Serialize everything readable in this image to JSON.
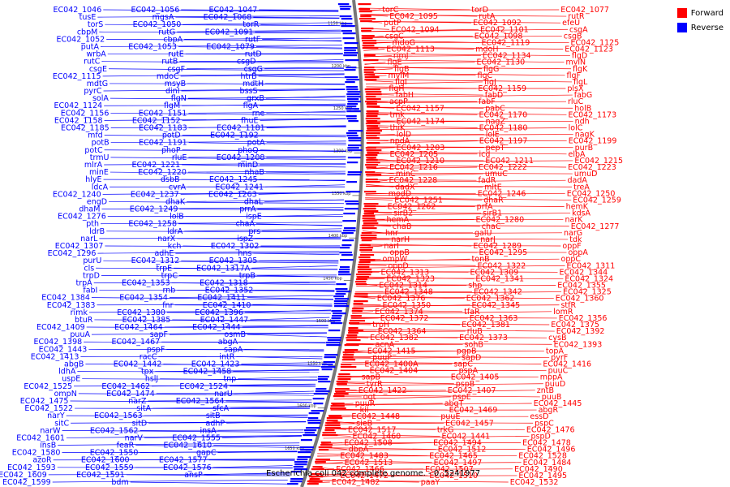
{
  "title": "Escherichia coli 042 complete genome. - 0..5241977",
  "legend": [
    {
      "label": "Forward",
      "color": "#ff0000"
    },
    {
      "label": "Reverse",
      "color": "#0000ff"
    }
  ],
  "scale_labels": [
    "1150 kbp",
    "1200 kbp",
    "1250 kbp",
    "1300 kbp",
    "1350 kbp",
    "1400 kbp",
    "1450 kbp",
    "1500 kbp",
    "1550 kbp",
    "1600 kbp",
    "1650 kbp"
  ],
  "reverse_labels": [
    "EC042_1046",
    "EC042_1056",
    "EC042_1047",
    "tusE",
    "mgsA",
    "EC042_1068",
    "torS",
    "EC042_1050",
    "torR",
    "cbpM",
    "rutG",
    "EC042_1091",
    "EC042_1052",
    "cbpA",
    "rutF",
    "putA",
    "EC042_1053",
    "EC042_1079",
    "wrbA",
    "rutE",
    "rutD",
    "rutC",
    "rutB",
    "csgD",
    "csgE",
    "csgF",
    "csgG",
    "EC042_1115",
    "mdoC",
    "htrB",
    "mdtG",
    "msyB",
    "mdtH",
    "pyrC",
    "dinI",
    "bssS",
    "solA",
    "flgN",
    "grxB",
    "EC042_1124",
    "flgM",
    "flgA",
    "EC042_1156",
    "EC042_1151",
    "rne",
    "EC042_1158",
    "EC042_1152",
    "fhuE",
    "EC042_1185",
    "EC042_1183",
    "EC042_1181",
    "mfd",
    "potD",
    "EC042_1192",
    "potB",
    "EC042_1191",
    "potA",
    "potC",
    "phoP",
    "phoQ",
    "trmU",
    "rluE",
    "EC042_1208",
    "mlrA",
    "EC042_1221",
    "minD",
    "minE",
    "EC042_1220",
    "nhaB",
    "hlyE",
    "dsbB",
    "EC042_1245",
    "ldcA",
    "cvrA",
    "EC042_1241",
    "EC042_1240",
    "EC042_1237",
    "EC042_1263",
    "engD",
    "dhaK",
    "dhaL",
    "dhaM",
    "EC042_1249",
    "prrA",
    "EC042_1276",
    "lolB",
    "ispE",
    "pth",
    "EC042_1258",
    "chaA",
    "ldrB",
    "ldrA",
    "prs",
    "narL",
    "narX",
    "ispZ",
    "EC042_1307",
    "kch",
    "EC042_1302",
    "EC042_1296",
    "adhE",
    "hns",
    "purU",
    "EC042_1312",
    "EC042_1305",
    "cls",
    "trpE",
    "EC042_1317A",
    "trpD",
    "trpC",
    "trpB",
    "trpA",
    "EC042_1353",
    "EC042_1318",
    "fabI",
    "rnb",
    "EC042_1352",
    "EC042_1384",
    "EC042_1354",
    "EC042_1411",
    "EC042_1383",
    "fnr",
    "EC042_1410",
    "rimk",
    "EC042_1380",
    "EC042_1396",
    "btuR",
    "EC042_1385",
    "EC042_1447",
    "EC042_1409",
    "EC042_1464",
    "EC042_1444",
    "puuA",
    "sapF",
    "osmB",
    "EC042_1398",
    "EC042_1467",
    "abgA",
    "EC042_1443",
    "pspF",
    "sapA",
    "EC042_1413",
    "racC",
    "intR",
    "abgB",
    "EC042_1442",
    "EC042_1423",
    "ldhA",
    "tpx",
    "EC042_1458",
    "uspE",
    "hslJ",
    "tnp",
    "EC042_1525",
    "EC042_1462",
    "EC042_1524",
    "ompN",
    "EC042_1474",
    "narU",
    "EC042_1475",
    "narZ",
    "EC042_1564",
    "EC042_1522",
    "sitA",
    "sfcA",
    "narY",
    "EC042_1563",
    "sitB",
    "sitC",
    "sitD",
    "adhP",
    "narW",
    "EC042_1562",
    "insA",
    "EC042_1601",
    "narV",
    "EC042_1555",
    "insB",
    "feaR",
    "EC042_1610",
    "EC042_1580",
    "EC042_1550",
    "gapC",
    "azoR",
    "EC042_1600",
    "EC042_1577",
    "EC042_1593",
    "EC042_1559",
    "EC042_1576",
    "EC042_1609",
    "EC042_1591",
    "ansP",
    "EC042_1599",
    "bdm"
  ],
  "forward_labels": [
    "torC",
    "torD",
    "EC042_1077",
    "EC042_1095",
    "rutA",
    "rutR",
    "putP",
    "EC042_1092",
    "efeU",
    "EC042_1094",
    "EC042_1101",
    "csgA",
    "csgC",
    "EC042_1098",
    "csgB",
    "mdoG",
    "EC042_1119",
    "EC042_1125",
    "EC042_1113",
    "mdoH",
    "EC042_1123",
    "rimJ",
    "EC042_1134",
    "flgD",
    "flgE",
    "EC042_1130",
    "mviN",
    "flgB",
    "flgG",
    "flgK",
    "mviM",
    "flgC",
    "flgF",
    "flgI",
    "flgJ",
    "flgL",
    "flgH",
    "EC042_1159",
    "plsX",
    "fabH",
    "fabD",
    "fabG",
    "acpP",
    "fabF",
    "rluC",
    "EC042_1157",
    "pabC",
    "holB",
    "tmk",
    "EC042_1170",
    "EC042_1173",
    "EC042_1174",
    "nagZ",
    "ndh",
    "thiK",
    "EC042_1180",
    "lolC",
    "lolD",
    "lolE",
    "nagK",
    "npdA",
    "EC042_1197",
    "EC042_1199",
    "EC042_1203",
    "pepT",
    "purB",
    "EC042_1205",
    "icd",
    "elbA",
    "EC042_1210",
    "EC042_1211",
    "EC042_1215",
    "EC042_1216",
    "EC042_1222",
    "EC042_1223",
    "minC",
    "umuC",
    "umuD",
    "EC042_1228",
    "fadR",
    "dadA",
    "dadX",
    "mltE",
    "treA",
    "modD",
    "EC042_1246",
    "EC042_1250",
    "EC042_1251",
    "dhaR",
    "EC042_1259",
    "EC042_1262",
    "prfA",
    "hemK",
    "sirB2",
    "sirB1",
    "kdsA",
    "hemA",
    "EC042_1280",
    "narK",
    "chaB",
    "chaC",
    "EC042_1277",
    "hnr",
    "galU",
    "narG",
    "narH",
    "narJ",
    "tdk",
    "narI",
    "EC042_1289",
    "oppF",
    "oppB",
    "EC042_1295",
    "oppA",
    "ompW",
    "tonB",
    "oppC",
    "oppD",
    "EC042_1322",
    "EC042_1311",
    "EC042_1313",
    "EC042_1309",
    "EC042_1344",
    "EC042_1323",
    "EC042_1341",
    "EC042_1324",
    "EC042_1314",
    "shp",
    "EC042_1355",
    "EC042_1348",
    "EC042_1342",
    "EC042_1325",
    "EC042_1376",
    "EC042_1362",
    "EC042_1360",
    "EC042_1350",
    "EC042_1345",
    "stfR",
    "EC042_1374",
    "tfaR",
    "lomR",
    "EC042_1372",
    "EC042_1363",
    "EC042_1356",
    "trpH",
    "EC042_1381",
    "EC042_1375",
    "EC042_1364",
    "rluB",
    "EC042_1392",
    "EC042_1382",
    "EC042_1373",
    "cysB",
    "acnA",
    "sohB",
    "EC042_1393",
    "EC042_1415",
    "pgpB",
    "topA",
    "puuP",
    "sapD",
    "pyrF",
    "EC042_1400A",
    "sapC",
    "EC042_1416",
    "EC042_1404",
    "pspA",
    "puuC",
    "sapB",
    "EC042_1405",
    "mppA",
    "tyrR",
    "pspB",
    "puuD",
    "EC042_1422",
    "EC042_1407",
    "zntB",
    "ogt",
    "pspE",
    "puuB",
    "puuR",
    "abgT",
    "EC042_1445",
    "kil",
    "EC042_1469",
    "abgR",
    "EC042_1448",
    "puuE",
    "essD",
    "sieB",
    "EC042_1457",
    "pspC",
    "EC042_1517",
    "trkG",
    "EC042_1476",
    "EC042_1460",
    "EC042_1441",
    "pspD",
    "EC042_1508",
    "EC042_1494",
    "EC042_1478",
    "dbpA",
    "EC042_1512",
    "EC042_1496",
    "EC042_1483",
    "EC042_1465",
    "EC042_1528",
    "EC042_1513",
    "EC042_1497",
    "EC042_1484",
    "EC042_1466",
    "EC042_1507",
    "EC042_1490",
    "EC042_1472",
    "EC042_1510",
    "EC042_1495",
    "EC042_1482",
    "paaY",
    "EC042_1532"
  ]
}
